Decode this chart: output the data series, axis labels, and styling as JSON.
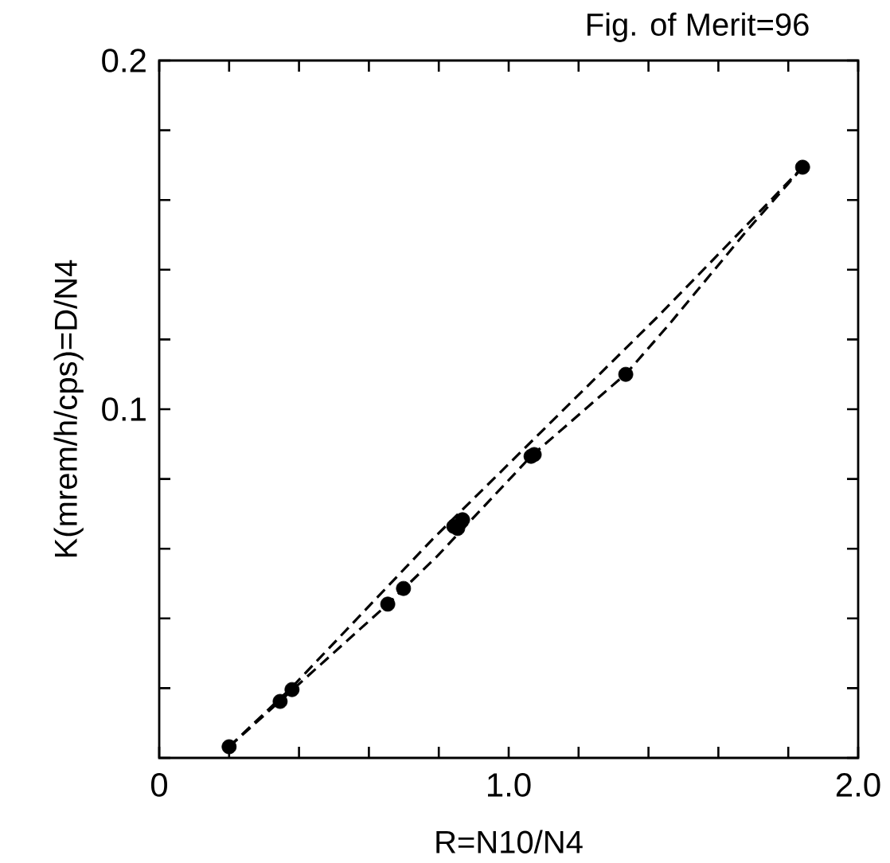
{
  "chart_data": {
    "type": "scatter",
    "title": "Fig. of Merit=96",
    "xlabel": "R=N10/N4",
    "ylabel": "K(mrem/h/cps)=D/N4",
    "xlim": [
      0,
      2.0
    ],
    "ylim": [
      0,
      0.2
    ],
    "xticks": [
      0,
      {
        "value": 0.2,
        "label": null
      },
      {
        "value": 0.4,
        "label": null
      },
      {
        "value": 0.6,
        "label": null
      },
      {
        "value": 0.8,
        "label": null
      },
      {
        "value": 1.0,
        "label": "1.0"
      },
      {
        "value": 1.2,
        "label": null
      },
      {
        "value": 1.4,
        "label": null
      },
      {
        "value": 1.6,
        "label": null
      },
      {
        "value": 1.8,
        "label": null
      },
      {
        "value": 2.0,
        "label": "2.0"
      }
    ],
    "yticks": [
      {
        "value": 0,
        "label": null
      },
      {
        "value": 0.02,
        "label": null
      },
      {
        "value": 0.04,
        "label": null
      },
      {
        "value": 0.06,
        "label": null
      },
      {
        "value": 0.08,
        "label": null
      },
      0.1,
      {
        "value": 0.12,
        "label": null
      },
      {
        "value": 0.14,
        "label": null
      },
      {
        "value": 0.16,
        "label": null
      },
      {
        "value": 0.18,
        "label": null
      },
      0.2
    ],
    "grid": false,
    "series": [
      {
        "marker": "circle",
        "color": "#000000",
        "x": [
          0.2,
          0.346,
          0.38,
          0.654,
          0.699,
          0.843,
          0.854,
          0.868,
          1.064,
          1.073,
          1.335,
          1.841
        ],
        "values": [
          0.0032,
          0.0162,
          0.0196,
          0.0441,
          0.0486,
          0.0664,
          0.0658,
          0.0683,
          0.0865,
          0.087,
          0.11,
          0.1694
        ]
      },
      {
        "type": "line",
        "line_style": "dashed",
        "marker": "none",
        "color": "#000000",
        "x": [
          0.2,
          0.38,
          0.781,
          1.419,
          1.656,
          1.841
        ],
        "values": [
          0.0032,
          0.0203,
          0.0626,
          0.1258,
          0.1502,
          0.1694
        ]
      },
      {
        "type": "line",
        "line_style": "dashed",
        "marker": "none",
        "color": "#000000",
        "x": [
          0.2,
          0.38,
          0.654,
          0.797,
          1.064,
          1.337,
          1.458,
          1.679,
          1.841
        ],
        "values": [
          0.0032,
          0.0194,
          0.0441,
          0.058,
          0.0865,
          0.1103,
          0.1242,
          0.1509,
          0.1694
        ]
      }
    ]
  }
}
